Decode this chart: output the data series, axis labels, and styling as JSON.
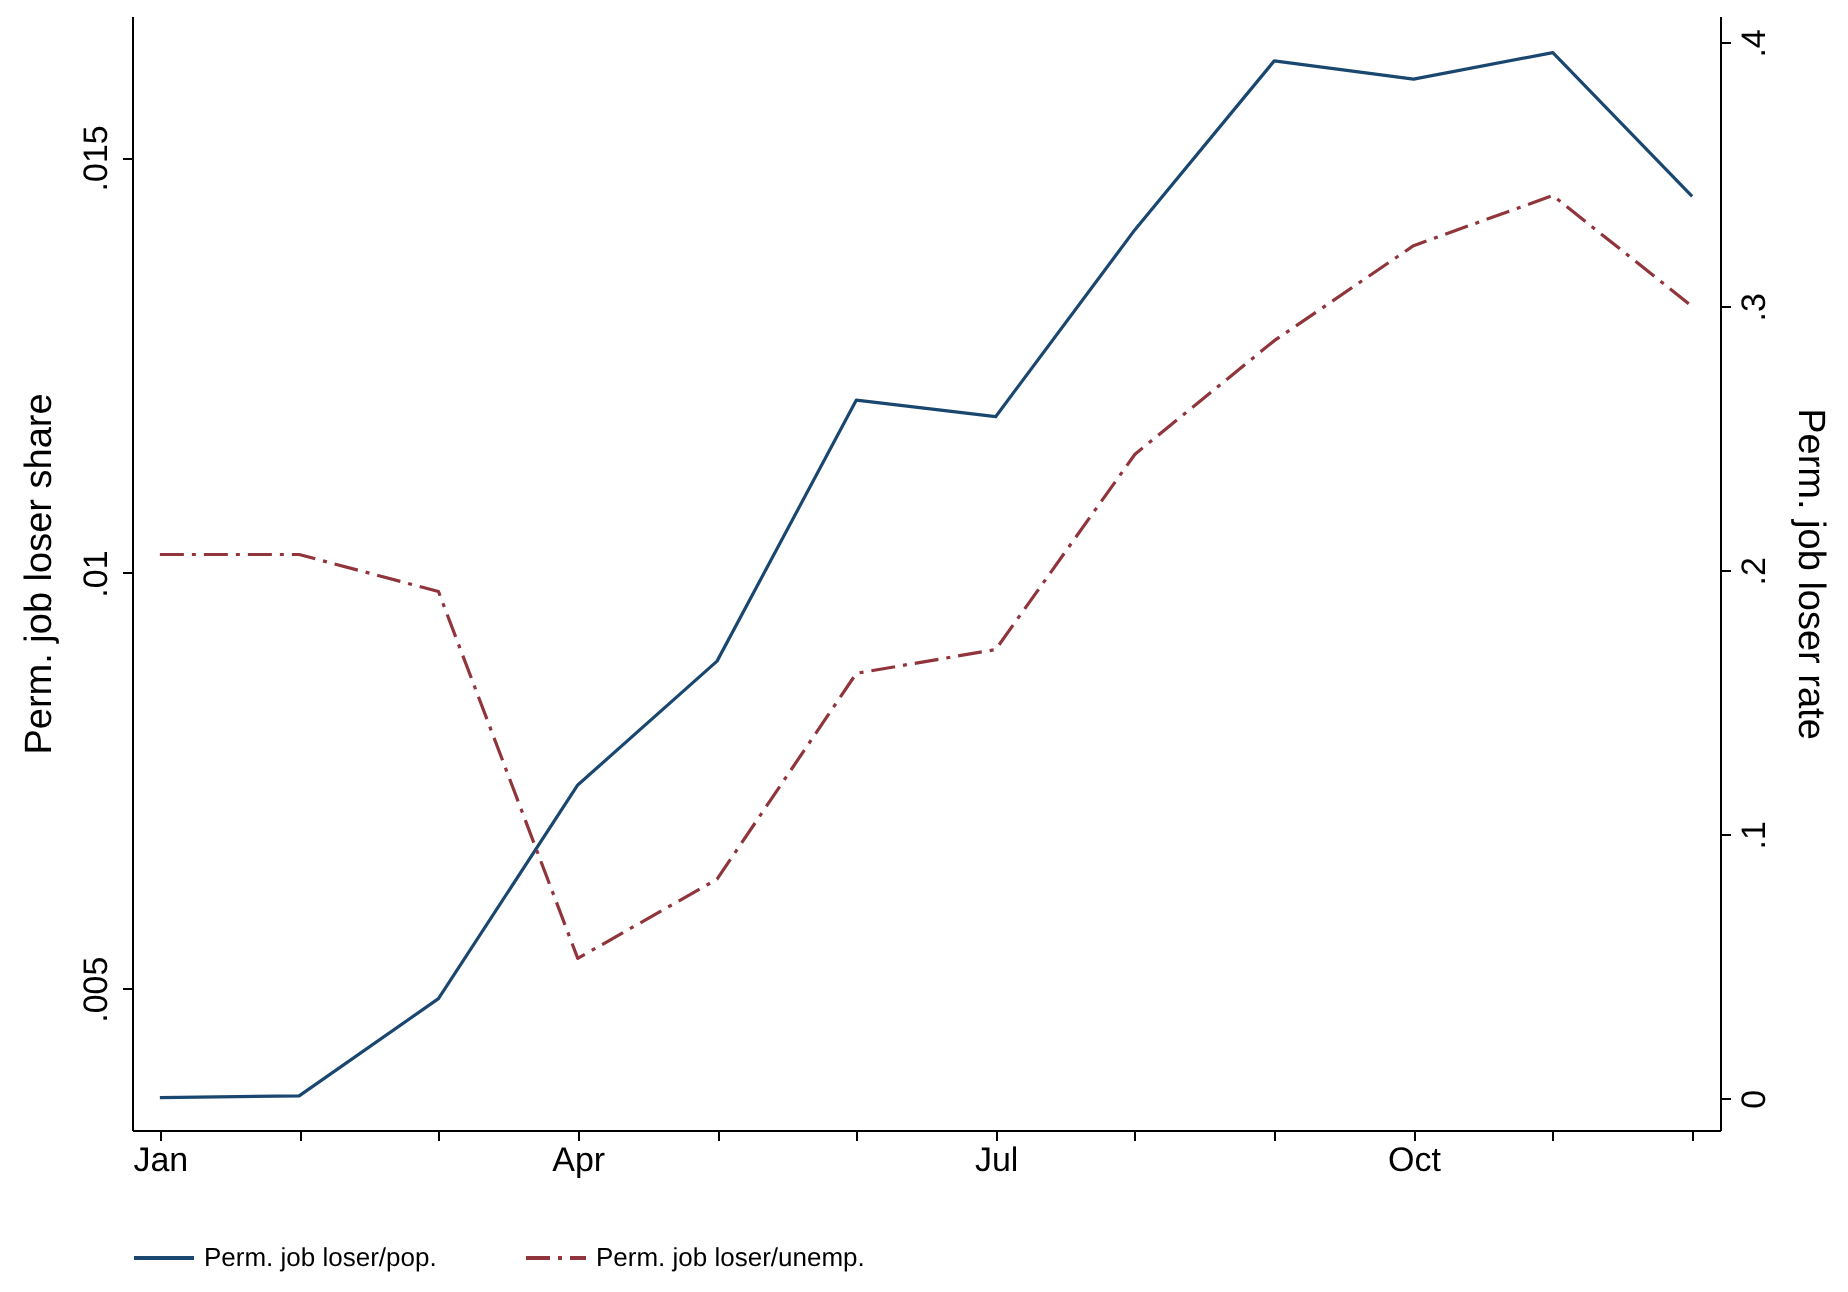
{
  "chart_data": {
    "type": "line",
    "ylabel": "Perm. job loser share",
    "y2label": "Perm. job loser rate",
    "categories": [
      "Jan",
      null,
      null,
      "Apr",
      null,
      null,
      "Jul",
      null,
      null,
      "Oct",
      null,
      null
    ],
    "ylim": [
      0.0033,
      0.0167
    ],
    "yticks": [
      {
        "value": 0.005,
        "label": ".005"
      },
      {
        "value": 0.01,
        "label": ".01"
      },
      {
        "value": 0.015,
        "label": ".015"
      }
    ],
    "y2lim": [
      -0.012,
      0.41
    ],
    "y2ticks": [
      0,
      {
        "value": 0.1,
        "label": ".1"
      },
      {
        "value": 0.2,
        "label": ".2"
      },
      {
        "value": 0.3,
        "label": ".3"
      },
      {
        "value": 0.4,
        "label": ".4"
      }
    ],
    "series": [
      {
        "name": "Perm. job loser/pop.",
        "color": "#1a476f",
        "line_style": "solid",
        "values": [
          0.00369,
          0.00371,
          0.00488,
          0.00745,
          0.00894,
          0.01208,
          0.01188,
          0.01413,
          0.01616,
          0.01594,
          0.01626,
          0.01453
        ]
      },
      {
        "name": "Perm. job loser/unemp.",
        "color": "#90353b",
        "line_style": "dashed",
        "axis": "y2",
        "values": [
          0.206,
          0.206,
          0.192,
          0.053,
          0.083,
          0.161,
          0.17,
          0.244,
          0.287,
          0.323,
          0.342,
          0.3
        ]
      }
    ],
    "legend": "bottom",
    "grid": false,
    "marker": "none"
  }
}
